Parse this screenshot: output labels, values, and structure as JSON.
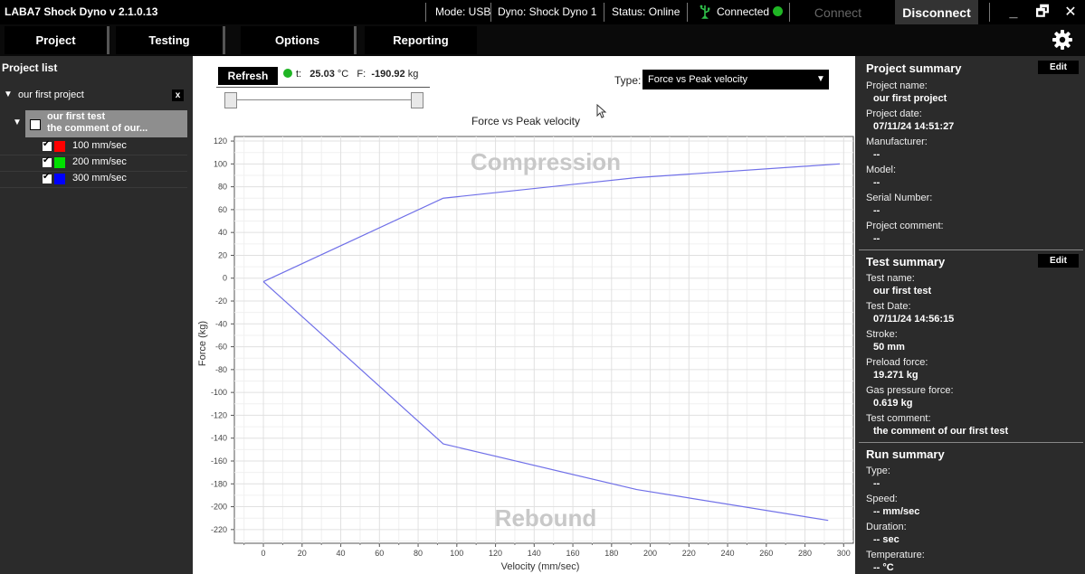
{
  "titlebar": {
    "app_title": "LABA7 Shock Dyno  v 2.1.0.13",
    "mode": "Mode: USB",
    "dyno": "Dyno: Shock Dyno 1",
    "status": "Status: Online",
    "connected": "Connected",
    "connect_label": "Connect",
    "disconnect_label": "Disconnect",
    "minimize": "_",
    "restore": "🗗",
    "close": "✕"
  },
  "menu": {
    "tabs": [
      {
        "label": "Project"
      },
      {
        "label": "Testing"
      },
      {
        "label": "Options"
      },
      {
        "label": "Reporting"
      }
    ]
  },
  "project_list": {
    "title": "Project list",
    "project_name": "our first project",
    "project_remove": "x",
    "test_name": "our first test",
    "test_comment": "the comment of our...",
    "runs": [
      {
        "label": "100 mm/sec",
        "color": "#ff0000"
      },
      {
        "label": "200 mm/sec",
        "color": "#00e000"
      },
      {
        "label": "300 mm/sec",
        "color": "#0000ff"
      }
    ]
  },
  "chart_panel": {
    "refresh_label": "Refresh",
    "t_label": "t:",
    "t_value": "25.03",
    "t_unit": "°C",
    "f_label": "F:",
    "f_value": "-190.92",
    "f_unit": "kg",
    "type_label": "Type:",
    "type_value": "Force vs Peak velocity"
  },
  "chart_data": {
    "type": "line",
    "title": "Force vs Peak velocity",
    "xlabel": "Velocity (mm/sec)",
    "ylabel": "Force (kg)",
    "xlim": [
      -15,
      305
    ],
    "ylim": [
      -232,
      124
    ],
    "xticks": [
      0,
      20,
      40,
      60,
      80,
      100,
      120,
      140,
      160,
      180,
      200,
      220,
      240,
      260,
      280,
      300
    ],
    "yticks": [
      120,
      100,
      80,
      60,
      40,
      20,
      0,
      -20,
      -40,
      -60,
      -80,
      -100,
      -120,
      -140,
      -160,
      -180,
      -200,
      -220
    ],
    "grid": true,
    "annotations": [
      "Compression",
      "Rebound"
    ],
    "series": [
      {
        "color": "#7070e8",
        "x": [
          0,
          93,
          193,
          298
        ],
        "y": [
          -3,
          70,
          88,
          100
        ]
      },
      {
        "color": "#7070e8",
        "x": [
          0,
          93,
          193,
          292
        ],
        "y": [
          -3,
          -145,
          -185,
          -212
        ]
      }
    ]
  },
  "project_summary": {
    "title": "Project summary",
    "edit_label": "Edit",
    "fields": [
      {
        "label": "Project name:",
        "value": "our first project"
      },
      {
        "label": "Project date:",
        "value": "07/11/24 14:51:27"
      },
      {
        "label": "Manufacturer:",
        "value": "--"
      },
      {
        "label": "Model:",
        "value": "--"
      },
      {
        "label": "Serial Number:",
        "value": "--"
      },
      {
        "label": "Project comment:",
        "value": "--"
      }
    ]
  },
  "test_summary": {
    "title": "Test summary",
    "edit_label": "Edit",
    "fields": [
      {
        "label": "Test name:",
        "value": "our first test"
      },
      {
        "label": "Test Date:",
        "value": "07/11/24 14:56:15"
      },
      {
        "label": "Stroke:",
        "value": "50  mm"
      },
      {
        "label": "Preload force:",
        "value": "19.271  kg"
      },
      {
        "label": "Gas pressure force:",
        "value": "0.619  kg"
      },
      {
        "label": "Test comment:",
        "value": "the comment of our first test"
      }
    ]
  },
  "run_summary": {
    "title": "Run summary",
    "fields": [
      {
        "label": "Type:",
        "value": "--"
      },
      {
        "label": "Speed:",
        "value": "-- mm/sec"
      },
      {
        "label": "Duration:",
        "value": "-- sec"
      },
      {
        "label": "Temperature:",
        "value": "-- °C"
      }
    ]
  }
}
